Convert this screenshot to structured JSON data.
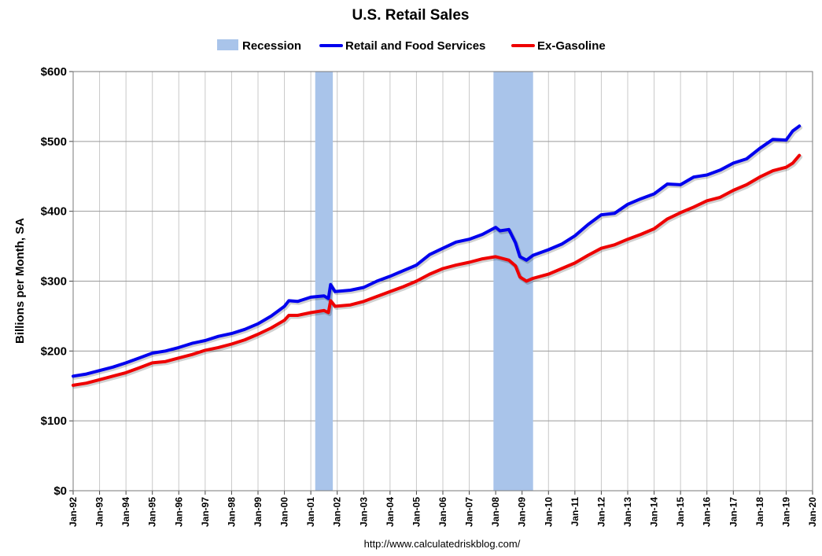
{
  "chart_data": {
    "type": "line",
    "title": "U.S. Retail Sales",
    "ylabel": "Billions per Month, SA",
    "xlabel": "",
    "source": "http://www.calculatedriskblog.com/",
    "ylim": [
      0,
      600
    ],
    "xlim": [
      "1992-01",
      "2020-01"
    ],
    "y_ticks": [
      "$0",
      "$100",
      "$200",
      "$300",
      "$400",
      "$500",
      "$600"
    ],
    "y_tick_values": [
      0,
      100,
      200,
      300,
      400,
      500,
      600
    ],
    "x_ticks": [
      "Jan-92",
      "Jan-93",
      "Jan-94",
      "Jan-95",
      "Jan-96",
      "Jan-97",
      "Jan-98",
      "Jan-99",
      "Jan-00",
      "Jan-01",
      "Jan-02",
      "Jan-03",
      "Jan-04",
      "Jan-05",
      "Jan-06",
      "Jan-07",
      "Jan-08",
      "Jan-09",
      "Jan-10",
      "Jan-11",
      "Jan-12",
      "Jan-13",
      "Jan-14",
      "Jan-15",
      "Jan-16",
      "Jan-17",
      "Jan-18",
      "Jan-19",
      "Jan-20"
    ],
    "grid": true,
    "legend_position": "top",
    "legend": [
      {
        "name": "Recession",
        "kind": "band",
        "color": "#a9c4ea"
      },
      {
        "name": "Retail and Food Services",
        "kind": "line",
        "color": "#0000ee"
      },
      {
        "name": "Ex-Gasoline",
        "kind": "line",
        "color": "#ee0000"
      }
    ],
    "recessions": [
      {
        "start": "2001-03",
        "end": "2001-11"
      },
      {
        "start": "2007-12",
        "end": "2009-06"
      }
    ],
    "series": [
      {
        "name": "Retail and Food Services",
        "color": "#0000ee",
        "points": [
          [
            "1992-01",
            164
          ],
          [
            "1992-07",
            167
          ],
          [
            "1993-01",
            172
          ],
          [
            "1993-07",
            177
          ],
          [
            "1994-01",
            183
          ],
          [
            "1994-07",
            190
          ],
          [
            "1995-01",
            197
          ],
          [
            "1995-07",
            200
          ],
          [
            "1996-01",
            205
          ],
          [
            "1996-07",
            211
          ],
          [
            "1997-01",
            215
          ],
          [
            "1997-07",
            221
          ],
          [
            "1998-01",
            225
          ],
          [
            "1998-07",
            231
          ],
          [
            "1999-01",
            239
          ],
          [
            "1999-07",
            250
          ],
          [
            "2000-01",
            264
          ],
          [
            "2000-03",
            272
          ],
          [
            "2000-07",
            271
          ],
          [
            "2001-01",
            277
          ],
          [
            "2001-07",
            279
          ],
          [
            "2001-09",
            275
          ],
          [
            "2001-10",
            295
          ],
          [
            "2001-12",
            285
          ],
          [
            "2002-07",
            287
          ],
          [
            "2003-01",
            291
          ],
          [
            "2003-07",
            300
          ],
          [
            "2004-01",
            307
          ],
          [
            "2004-07",
            315
          ],
          [
            "2005-01",
            323
          ],
          [
            "2005-07",
            338
          ],
          [
            "2006-01",
            347
          ],
          [
            "2006-07",
            356
          ],
          [
            "2007-01",
            360
          ],
          [
            "2007-07",
            367
          ],
          [
            "2008-01",
            377
          ],
          [
            "2008-03",
            372
          ],
          [
            "2008-07",
            374
          ],
          [
            "2008-10",
            355
          ],
          [
            "2008-12",
            335
          ],
          [
            "2009-03",
            330
          ],
          [
            "2009-06",
            337
          ],
          [
            "2010-01",
            345
          ],
          [
            "2010-07",
            353
          ],
          [
            "2011-01",
            365
          ],
          [
            "2011-07",
            381
          ],
          [
            "2012-01",
            395
          ],
          [
            "2012-07",
            397
          ],
          [
            "2013-01",
            410
          ],
          [
            "2013-07",
            418
          ],
          [
            "2014-01",
            425
          ],
          [
            "2014-07",
            439
          ],
          [
            "2015-01",
            438
          ],
          [
            "2015-07",
            449
          ],
          [
            "2016-01",
            452
          ],
          [
            "2016-07",
            459
          ],
          [
            "2017-01",
            469
          ],
          [
            "2017-07",
            475
          ],
          [
            "2018-01",
            490
          ],
          [
            "2018-07",
            503
          ],
          [
            "2019-01",
            502
          ],
          [
            "2019-04",
            515
          ],
          [
            "2019-07",
            522
          ]
        ]
      },
      {
        "name": "Ex-Gasoline",
        "color": "#ee0000",
        "points": [
          [
            "1992-01",
            151
          ],
          [
            "1992-07",
            154
          ],
          [
            "1993-01",
            159
          ],
          [
            "1993-07",
            164
          ],
          [
            "1994-01",
            169
          ],
          [
            "1994-07",
            176
          ],
          [
            "1995-01",
            183
          ],
          [
            "1995-07",
            185
          ],
          [
            "1996-01",
            190
          ],
          [
            "1996-07",
            195
          ],
          [
            "1997-01",
            201
          ],
          [
            "1997-07",
            205
          ],
          [
            "1998-01",
            210
          ],
          [
            "1998-07",
            216
          ],
          [
            "1999-01",
            224
          ],
          [
            "1999-07",
            233
          ],
          [
            "2000-01",
            244
          ],
          [
            "2000-03",
            251
          ],
          [
            "2000-07",
            251
          ],
          [
            "2001-01",
            255
          ],
          [
            "2001-07",
            258
          ],
          [
            "2001-09",
            255
          ],
          [
            "2001-10",
            272
          ],
          [
            "2001-12",
            264
          ],
          [
            "2002-07",
            266
          ],
          [
            "2003-01",
            271
          ],
          [
            "2003-07",
            278
          ],
          [
            "2004-01",
            285
          ],
          [
            "2004-07",
            292
          ],
          [
            "2005-01",
            300
          ],
          [
            "2005-07",
            310
          ],
          [
            "2006-01",
            318
          ],
          [
            "2006-07",
            323
          ],
          [
            "2007-01",
            327
          ],
          [
            "2007-07",
            332
          ],
          [
            "2008-01",
            335
          ],
          [
            "2008-07",
            330
          ],
          [
            "2008-10",
            322
          ],
          [
            "2008-12",
            306
          ],
          [
            "2009-03",
            300
          ],
          [
            "2009-06",
            304
          ],
          [
            "2010-01",
            310
          ],
          [
            "2010-07",
            318
          ],
          [
            "2011-01",
            326
          ],
          [
            "2011-07",
            337
          ],
          [
            "2012-01",
            347
          ],
          [
            "2012-07",
            352
          ],
          [
            "2013-01",
            360
          ],
          [
            "2013-07",
            367
          ],
          [
            "2014-01",
            375
          ],
          [
            "2014-07",
            389
          ],
          [
            "2015-01",
            398
          ],
          [
            "2015-07",
            406
          ],
          [
            "2016-01",
            415
          ],
          [
            "2016-07",
            420
          ],
          [
            "2017-01",
            430
          ],
          [
            "2017-07",
            438
          ],
          [
            "2018-01",
            449
          ],
          [
            "2018-07",
            458
          ],
          [
            "2019-01",
            463
          ],
          [
            "2019-04",
            469
          ],
          [
            "2019-07",
            480
          ]
        ]
      }
    ]
  }
}
